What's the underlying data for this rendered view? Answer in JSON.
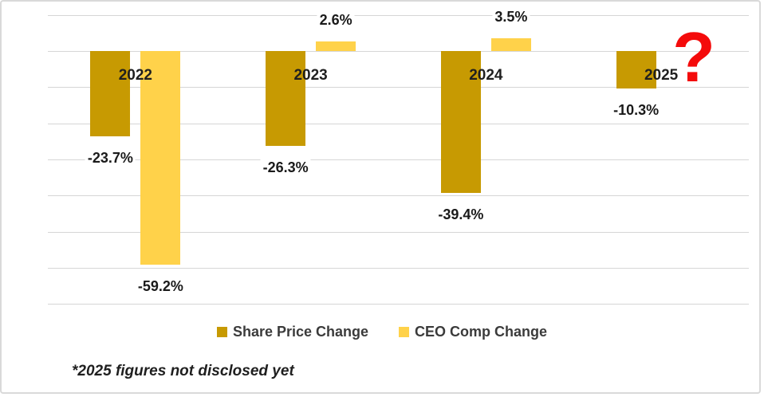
{
  "chart_data": {
    "type": "bar",
    "title": "",
    "categories": [
      "2022",
      "2023",
      "2024",
      "2025"
    ],
    "series": [
      {
        "name": "Share Price Change",
        "color": "#C79A02",
        "values": [
          -23.7,
          -26.3,
          -39.4,
          -10.3
        ],
        "labels": [
          "-23.7%",
          "-26.3%",
          "-39.4%",
          "-10.3%"
        ]
      },
      {
        "name": "CEO Comp Change",
        "color": "#FFD24A",
        "values": [
          -59.2,
          2.6,
          3.5,
          null
        ],
        "labels": [
          "-59.2%",
          "2.6%",
          "3.5%",
          null
        ]
      }
    ],
    "ylim": [
      -70,
      10
    ],
    "gridline_step": 10,
    "grid": "horizontal-only",
    "axis_tick_labels_shown": false,
    "legend_position": "bottom",
    "annotation": {
      "symbol": "?",
      "color": "#F40B0B",
      "category": "2025"
    }
  },
  "footnote": "*2025 figures not disclosed yet"
}
